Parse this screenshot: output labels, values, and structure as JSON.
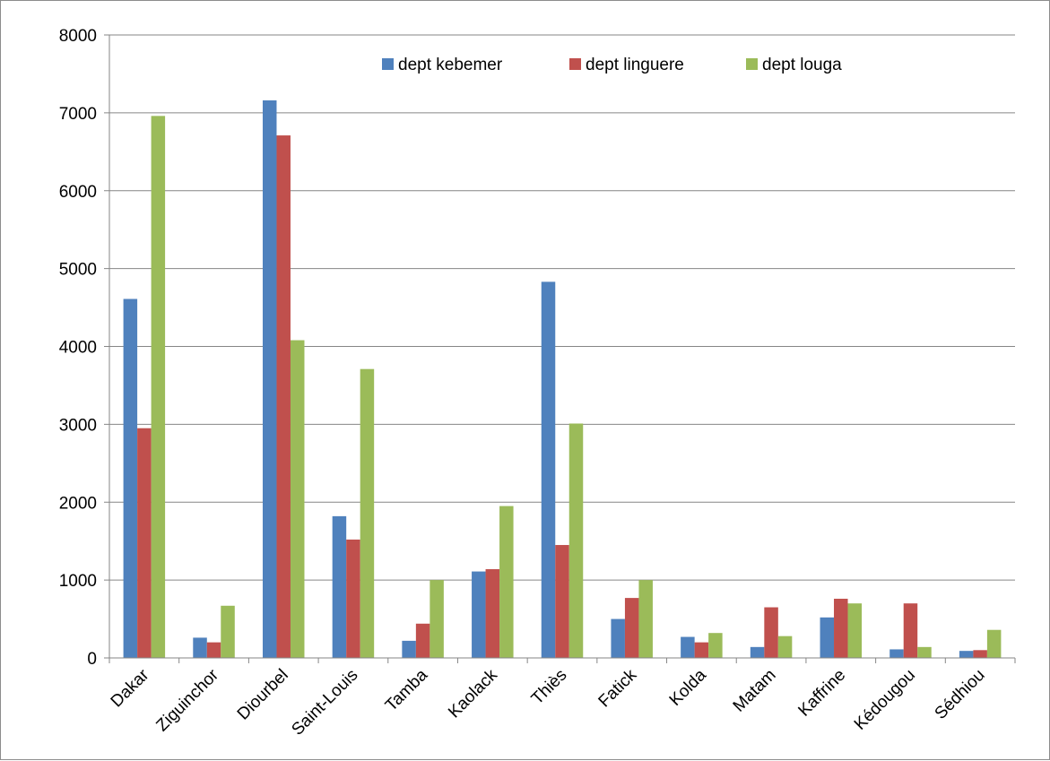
{
  "chart_data": {
    "type": "bar",
    "title": "",
    "xlabel": "",
    "ylabel": "",
    "ylim": [
      0,
      8000
    ],
    "yticks": [
      0,
      1000,
      2000,
      3000,
      4000,
      5000,
      6000,
      7000,
      8000
    ],
    "grid": true,
    "legend_position": "top",
    "categories": [
      "Dakar",
      "Ziguinchor",
      "Diourbel",
      "Saint-Louis",
      "Tamba",
      "Kaolack",
      "Thiès",
      "Fatick",
      "Kolda",
      "Matam",
      "Kaffrine",
      "Kédougou",
      "Sédhiou"
    ],
    "series": [
      {
        "name": "dept kebemer",
        "color": "#4F81BD",
        "values": [
          4610,
          260,
          7160,
          1820,
          220,
          1110,
          4830,
          500,
          270,
          140,
          520,
          110,
          90
        ]
      },
      {
        "name": "dept linguere",
        "color": "#C0504D",
        "values": [
          2950,
          200,
          6710,
          1520,
          440,
          1140,
          1450,
          770,
          200,
          650,
          760,
          700,
          100
        ]
      },
      {
        "name": "dept louga",
        "color": "#9BBB59",
        "values": [
          6960,
          670,
          4080,
          3710,
          1000,
          1950,
          3010,
          1000,
          320,
          280,
          700,
          140,
          360
        ]
      }
    ]
  }
}
